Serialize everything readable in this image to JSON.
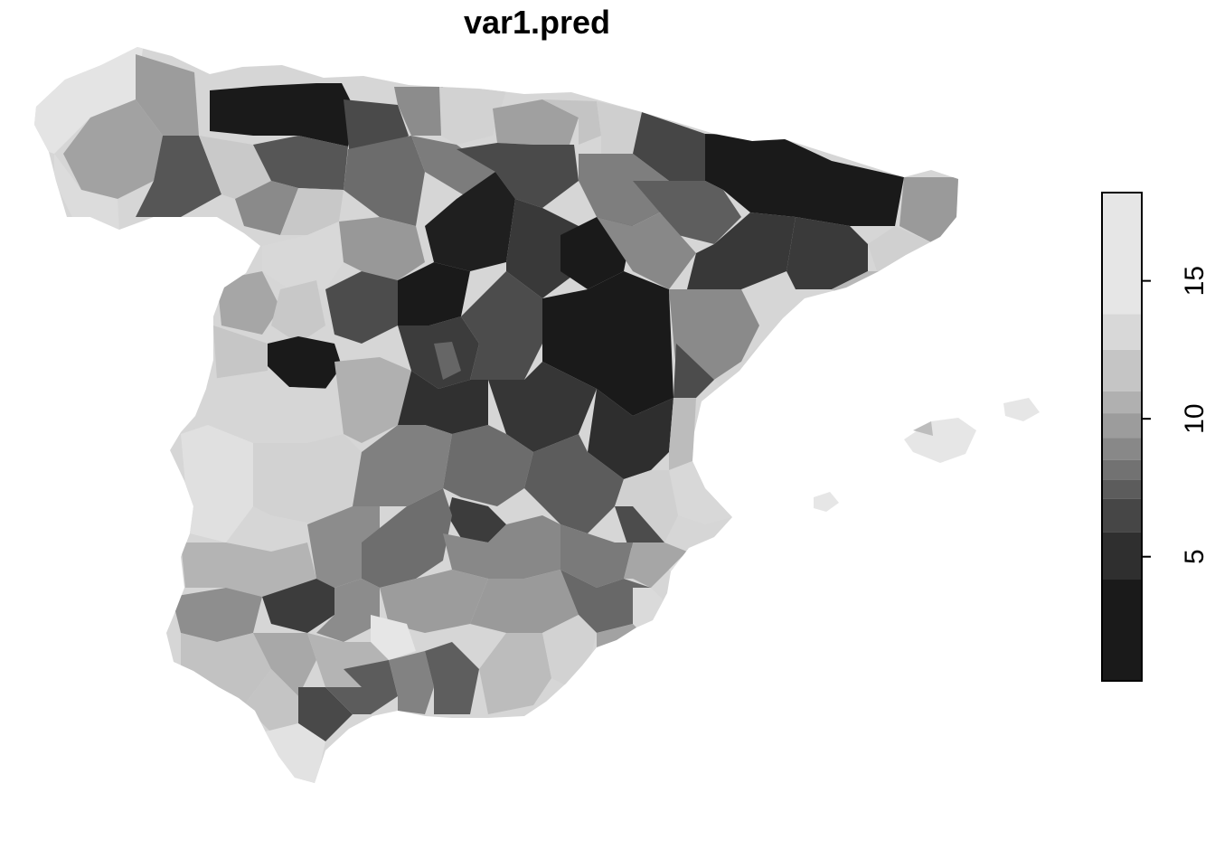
{
  "title": "var1.pred",
  "legend": {
    "ticks": [
      "5",
      "10",
      "15"
    ],
    "tick_values": [
      5,
      10,
      15
    ],
    "range": [
      0.5,
      18.2
    ],
    "bands": [
      {
        "from": 0.5,
        "to": 4.2,
        "color": "#1a1a1a"
      },
      {
        "from": 4.2,
        "to": 5.9,
        "color": "#2f2f2f"
      },
      {
        "from": 5.9,
        "to": 7.1,
        "color": "#464646"
      },
      {
        "from": 7.1,
        "to": 7.8,
        "color": "#5c5c5c"
      },
      {
        "from": 7.8,
        "to": 8.5,
        "color": "#727272"
      },
      {
        "from": 8.5,
        "to": 9.3,
        "color": "#888888"
      },
      {
        "from": 9.3,
        "to": 10.2,
        "color": "#9c9c9c"
      },
      {
        "from": 10.2,
        "to": 11.0,
        "color": "#b0b0b0"
      },
      {
        "from": 11.0,
        "to": 12.5,
        "color": "#c5c5c5"
      },
      {
        "from": 12.5,
        "to": 13.8,
        "color": "#d8d8d8"
      },
      {
        "from": 13.8,
        "to": 18.2,
        "color": "#e6e6e6"
      }
    ]
  }
}
